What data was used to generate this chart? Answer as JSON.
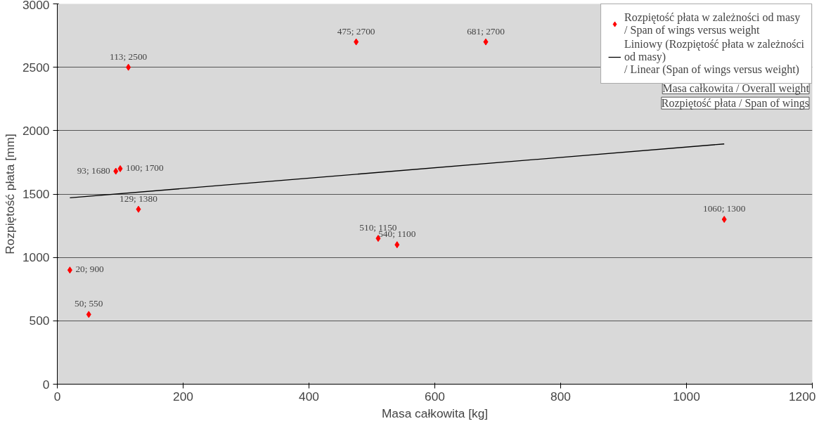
{
  "chart_data": {
    "type": "scatter",
    "xlabel": "Masa całkowita [kg]",
    "ylabel": "Rozpiętość płata [mm]",
    "xlim": [
      0,
      1200
    ],
    "xticks": [
      0,
      200,
      400,
      600,
      800,
      1000,
      1200
    ],
    "ylim": [
      0,
      3000
    ],
    "yticks": [
      0,
      500,
      1000,
      1500,
      2000,
      2500,
      3000
    ],
    "grid": "y",
    "legend": "top right",
    "series": [
      {
        "marker": "diamond",
        "name": "Rozpiętość płata w zależności od masy / Span of wings versus weight",
        "color": "#ff0000",
        "x": [
          20,
          50,
          93,
          100,
          113,
          129,
          475,
          510,
          540,
          681,
          1060
        ],
        "values": [
          900,
          550,
          1680,
          1700,
          2500,
          1380,
          2700,
          1150,
          1100,
          2700,
          1300
        ],
        "value_labels": [
          "20; 900",
          "50; 550",
          "93; 1680",
          "100; 1700",
          "113; 2500",
          "129; 1380",
          "475; 2700",
          "510; 1150",
          "540; 1100",
          "681; 2700",
          "1060; 1300"
        ]
      },
      {
        "type": "line",
        "name": "Liniowy (Rozpiętość płata w zależności od masy) / Linear (Span of wings versus weight)",
        "color": "#000000",
        "x": [
          20,
          1060
        ],
        "values": [
          1470,
          1895
        ]
      }
    ],
    "annotations": [
      "Masa całkowita / Overall weight",
      "Rozpiętość płata / Span of wings"
    ]
  }
}
